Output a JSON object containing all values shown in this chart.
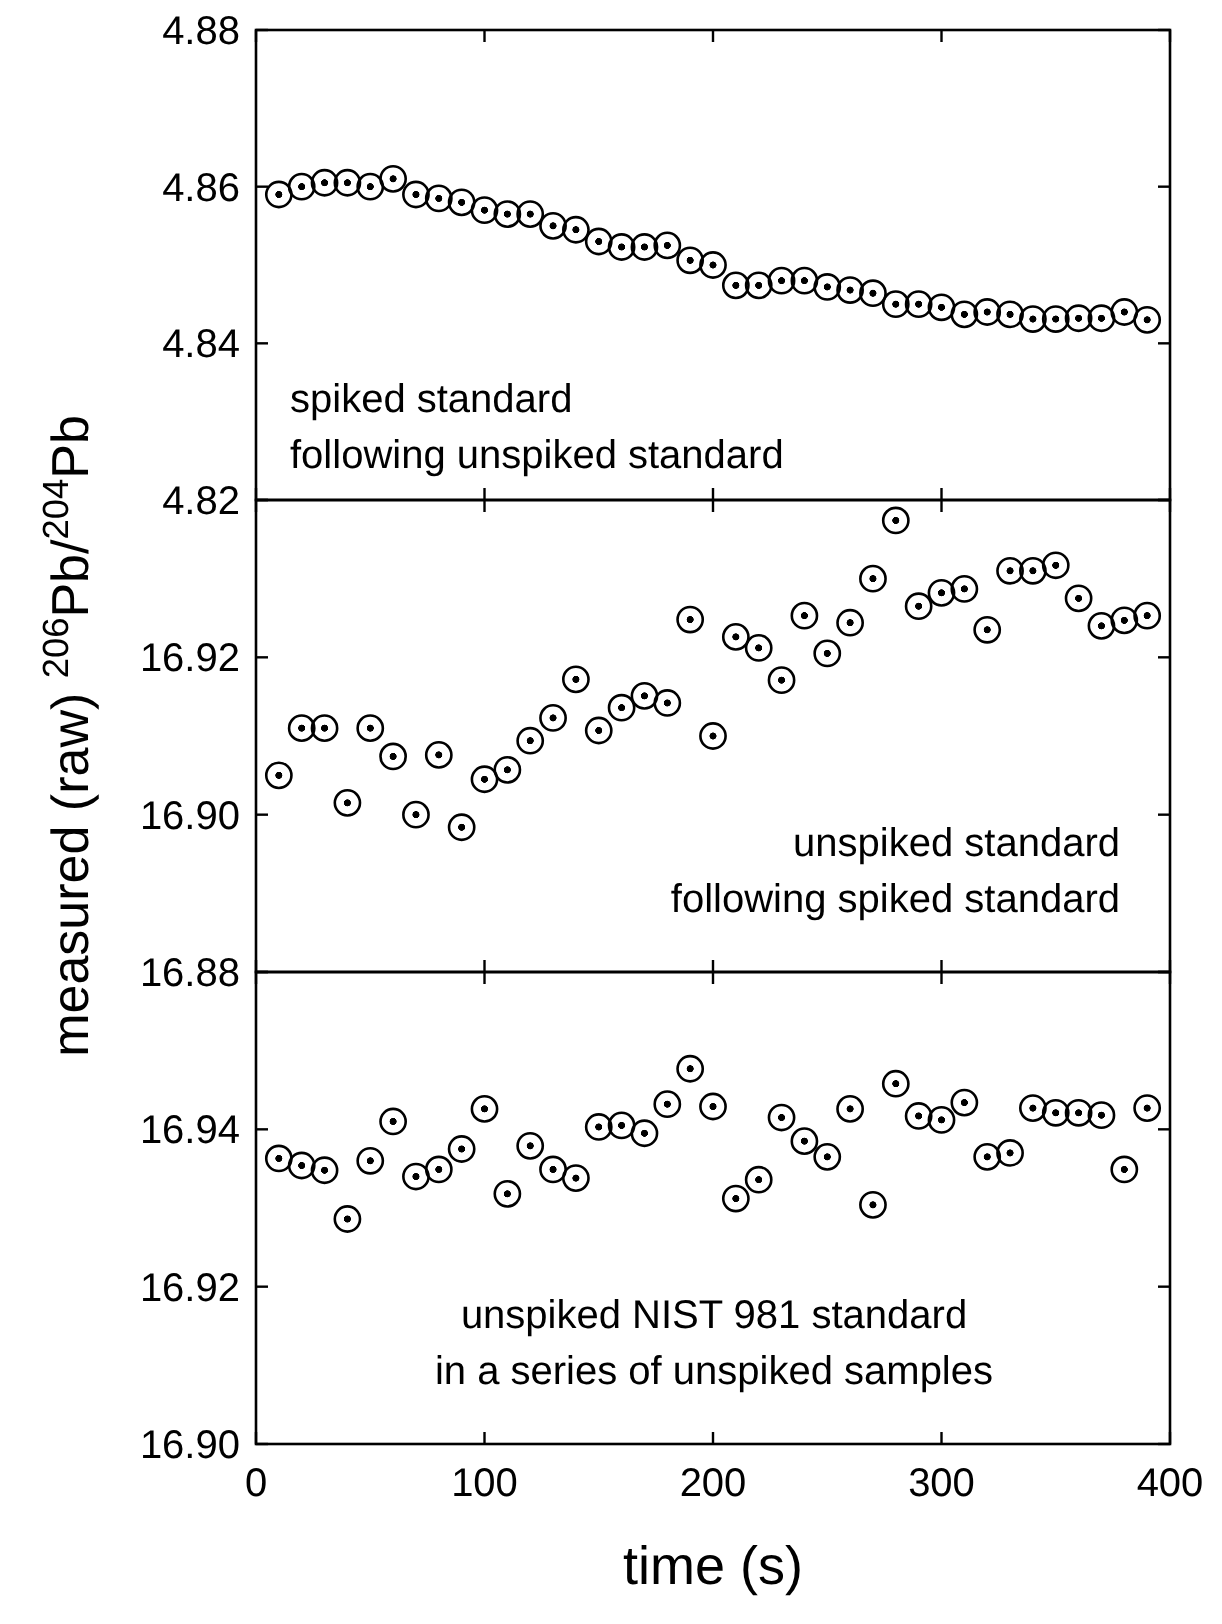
{
  "chart_data": [
    {
      "type": "scatter",
      "x": [
        10,
        20,
        30,
        40,
        50,
        60,
        70,
        80,
        90,
        100,
        110,
        120,
        130,
        140,
        150,
        160,
        170,
        180,
        190,
        200,
        210,
        220,
        230,
        240,
        250,
        260,
        270,
        280,
        290,
        300,
        310,
        320,
        330,
        340,
        350,
        360,
        370,
        380,
        390
      ],
      "series": [
        {
          "color": "#000000",
          "values": [
            4.859,
            4.86,
            4.8605,
            4.8605,
            4.86,
            4.861,
            4.859,
            4.8585,
            4.858,
            4.857,
            4.8565,
            4.8565,
            4.855,
            4.8545,
            4.853,
            4.8523,
            4.8523,
            4.8525,
            4.8506,
            4.85,
            4.8474,
            4.8474,
            4.848,
            4.848,
            4.8472,
            4.8468,
            4.8464,
            4.845,
            4.845,
            4.8446,
            4.8437,
            4.844,
            4.8437,
            4.8431,
            4.8431,
            4.8432,
            4.8432,
            4.844,
            4.843
          ]
        }
      ],
      "xlim": [
        0,
        400
      ],
      "xticks": [
        0,
        100,
        200,
        300,
        400
      ],
      "ylim": [
        4.82,
        4.88
      ],
      "yticks": [
        4.82,
        4.84,
        4.86,
        4.88
      ],
      "tick_labels": "y",
      "marker": "circle",
      "annotations": [
        "spiked standard\nfollowing unspiked standard"
      ]
    },
    {
      "type": "scatter",
      "x": [
        10,
        20,
        30,
        40,
        50,
        60,
        70,
        80,
        90,
        100,
        110,
        120,
        130,
        140,
        150,
        160,
        170,
        180,
        190,
        200,
        210,
        220,
        230,
        240,
        250,
        260,
        270,
        280,
        290,
        300,
        310,
        320,
        330,
        340,
        350,
        360,
        370,
        380,
        390
      ],
      "series": [
        {
          "color": "#000000",
          "values": [
            16.905,
            16.911,
            16.911,
            16.9015,
            16.911,
            16.9074,
            16.9,
            16.9076,
            16.8984,
            16.9045,
            16.9057,
            16.9094,
            16.9123,
            16.9172,
            16.9107,
            16.9136,
            16.9151,
            16.9142,
            16.9248,
            16.91,
            16.9226,
            16.9212,
            16.9171,
            16.9253,
            16.9205,
            16.9244,
            16.93,
            16.9374,
            16.9265,
            16.9282,
            16.9287,
            16.9235,
            16.931,
            16.931,
            16.9317,
            16.9275,
            16.924,
            16.9247,
            16.9253
          ]
        }
      ],
      "xlim": [
        0,
        400
      ],
      "xticks": [
        0,
        100,
        200,
        300,
        400
      ],
      "ylim": [
        16.88,
        16.94
      ],
      "yticks": [
        16.88,
        {
          "value": 16.9,
          "label": "16.90"
        },
        16.92,
        {
          "value": 16.94,
          "label": null
        }
      ],
      "tick_labels": "y",
      "marker": "circle",
      "ylabel": "measured (raw) $^{206}$Pb/$^{204}$Pb",
      "annotations": [
        "unspiked standard\nfollowing spiked standard"
      ]
    },
    {
      "type": "scatter",
      "x": [
        10,
        20,
        30,
        40,
        50,
        60,
        70,
        80,
        90,
        100,
        110,
        120,
        130,
        140,
        150,
        160,
        170,
        180,
        190,
        200,
        210,
        220,
        230,
        240,
        250,
        260,
        270,
        280,
        290,
        300,
        310,
        320,
        330,
        340,
        350,
        360,
        370,
        380,
        390
      ],
      "series": [
        {
          "color": "#000000",
          "values": [
            16.9363,
            16.9354,
            16.9348,
            16.9286,
            16.936,
            16.941,
            16.934,
            16.9349,
            16.9375,
            16.9426,
            16.9318,
            16.9379,
            16.9349,
            16.9338,
            16.9403,
            16.9405,
            16.9395,
            16.9432,
            16.9477,
            16.9429,
            16.9312,
            16.9336,
            16.9415,
            16.9385,
            16.9365,
            16.9426,
            16.9304,
            16.9458,
            16.9417,
            16.9412,
            16.9434,
            16.9365,
            16.937,
            16.9427,
            16.9421,
            16.9421,
            16.9418,
            16.9349,
            16.9427
          ]
        }
      ],
      "xlim": [
        0,
        400
      ],
      "xticks": [
        0,
        100,
        200,
        300,
        400
      ],
      "ylim": [
        16.9,
        16.96
      ],
      "yticks": [
        {
          "value": 16.9,
          "label": "16.90"
        },
        16.92,
        16.94,
        {
          "value": 16.96,
          "label": null
        }
      ],
      "marker": "circle",
      "xlabel": "time (s)",
      "annotations": [
        "unspiked NIST 981 standard\nin a series of unspiked samples"
      ]
    }
  ]
}
